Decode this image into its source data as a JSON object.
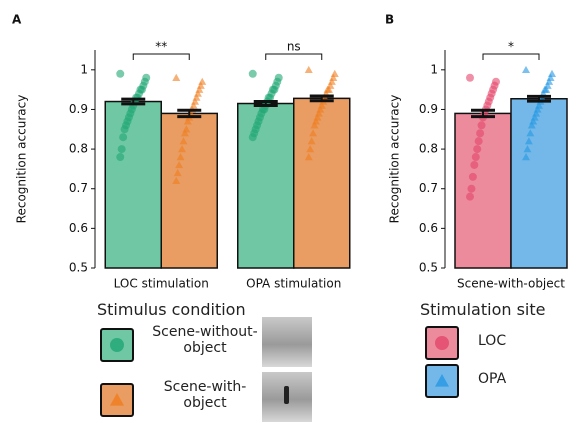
{
  "chart_data": [
    {
      "type": "bar",
      "panel": "A",
      "ylabel": "Recognition accuracy",
      "categories": [
        "LOC stimulation",
        "OPA stimulation"
      ],
      "ylim": [
        0.5,
        1.05
      ],
      "yticks": [
        0.5,
        0.6,
        0.7,
        0.8,
        0.9,
        1.0
      ],
      "annotations": [
        "**",
        "ns"
      ],
      "legend_title": "Stimulus condition",
      "series": [
        {
          "name": "Scene-without-object",
          "color": "#6fc8a3",
          "point_color": "#21a675",
          "marker": "circle",
          "values": [
            0.92,
            0.915
          ],
          "errors": [
            0.006,
            0.005
          ],
          "points": [
            [
              0.99,
              0.98,
              0.97,
              0.96,
              0.95,
              0.95,
              0.94,
              0.93,
              0.93,
              0.92,
              0.91,
              0.9,
              0.89,
              0.88,
              0.87,
              0.86,
              0.85,
              0.83,
              0.8,
              0.78
            ],
            [
              0.99,
              0.98,
              0.97,
              0.96,
              0.95,
              0.95,
              0.94,
              0.93,
              0.93,
              0.92,
              0.91,
              0.9,
              0.9,
              0.89,
              0.88,
              0.87,
              0.86,
              0.85,
              0.84,
              0.83
            ]
          ]
        },
        {
          "name": "Scene-with-object",
          "color": "#e99d63",
          "point_color": "#f07d1e",
          "marker": "triangle",
          "values": [
            0.89,
            0.928
          ],
          "errors": [
            0.008,
            0.006
          ],
          "points": [
            [
              0.98,
              0.97,
              0.96,
              0.95,
              0.94,
              0.93,
              0.92,
              0.91,
              0.9,
              0.89,
              0.88,
              0.87,
              0.85,
              0.84,
              0.82,
              0.8,
              0.78,
              0.76,
              0.74,
              0.72
            ],
            [
              1.0,
              0.99,
              0.98,
              0.97,
              0.96,
              0.95,
              0.95,
              0.94,
              0.93,
              0.92,
              0.91,
              0.9,
              0.89,
              0.88,
              0.87,
              0.86,
              0.84,
              0.82,
              0.8,
              0.78
            ]
          ]
        }
      ]
    },
    {
      "type": "bar",
      "panel": "B",
      "ylabel": "Recognition accuracy",
      "categories": [
        "Scene-with-object"
      ],
      "ylim": [
        0.5,
        1.05
      ],
      "yticks": [
        0.5,
        0.6,
        0.7,
        0.8,
        0.9,
        1.0
      ],
      "annotations": [
        "*"
      ],
      "legend_title": "Stimulation site",
      "series": [
        {
          "name": "LOC",
          "color": "#eb8b9c",
          "point_color": "#e4466a",
          "marker": "circle",
          "values": [
            0.89
          ],
          "errors": [
            0.008
          ],
          "points": [
            [
              0.98,
              0.97,
              0.96,
              0.95,
              0.94,
              0.93,
              0.92,
              0.91,
              0.9,
              0.89,
              0.88,
              0.86,
              0.84,
              0.82,
              0.8,
              0.78,
              0.76,
              0.73,
              0.7,
              0.68
            ]
          ]
        },
        {
          "name": "OPA",
          "color": "#74b8e9",
          "point_color": "#2597e3",
          "marker": "triangle",
          "values": [
            0.927
          ],
          "errors": [
            0.006
          ],
          "points": [
            [
              1.0,
              0.99,
              0.98,
              0.97,
              0.96,
              0.95,
              0.95,
              0.94,
              0.93,
              0.92,
              0.91,
              0.9,
              0.89,
              0.88,
              0.87,
              0.86,
              0.84,
              0.82,
              0.8,
              0.78
            ]
          ]
        }
      ]
    }
  ]
}
